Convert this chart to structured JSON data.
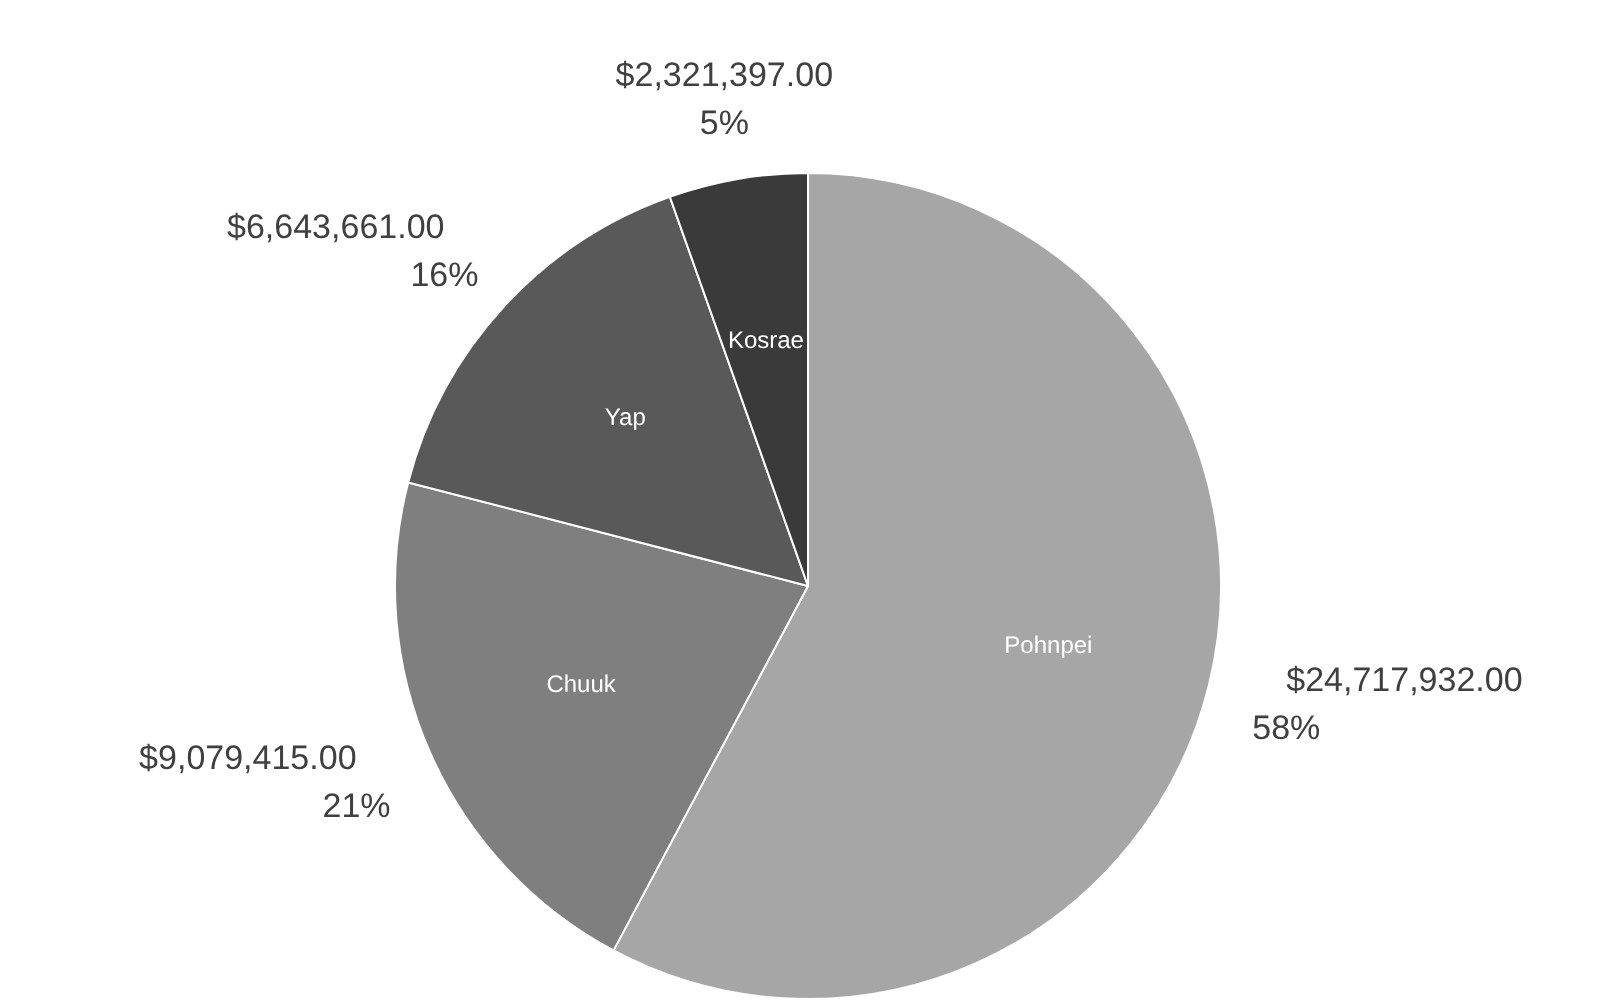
{
  "chart_data": {
    "type": "pie",
    "categories": [
      "Pohnpei",
      "Chuuk",
      "Yap",
      "Kosrae"
    ],
    "values": [
      24717932,
      9079415,
      6643661,
      2321397
    ],
    "colors": [
      "#a6a6a6",
      "#7f7f7f",
      "#595959",
      "#3a3a3a"
    ],
    "value_labels": [
      "$24,717,932.00\n58%",
      "$9,079,415.00\n21%",
      "$6,643,661.00\n16%",
      "$2,321,397.00\n5%"
    ]
  }
}
